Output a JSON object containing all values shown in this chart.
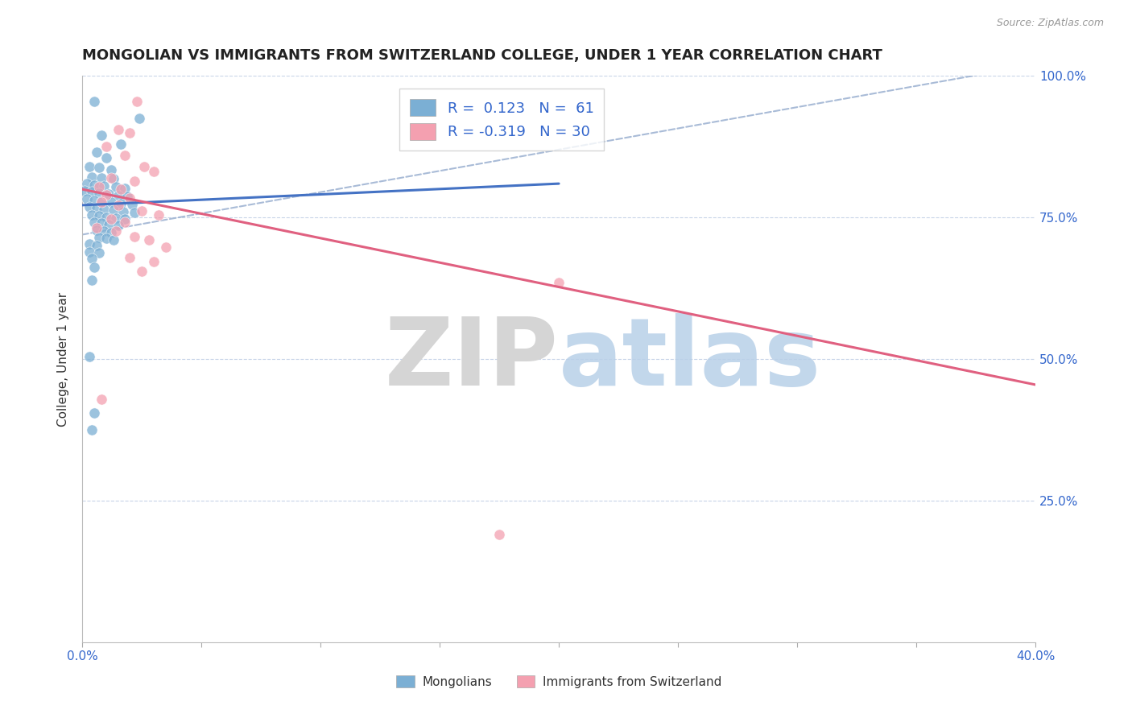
{
  "title": "MONGOLIAN VS IMMIGRANTS FROM SWITZERLAND COLLEGE, UNDER 1 YEAR CORRELATION CHART",
  "source": "Source: ZipAtlas.com",
  "ylabel": "College, Under 1 year",
  "xlim": [
    0.0,
    0.4
  ],
  "ylim": [
    0.0,
    1.0
  ],
  "xticks": [
    0.0,
    0.05,
    0.1,
    0.15,
    0.2,
    0.25,
    0.3,
    0.35,
    0.4
  ],
  "yticks": [
    0.0,
    0.25,
    0.5,
    0.75,
    1.0
  ],
  "blue_color": "#7bafd4",
  "pink_color": "#f4a0b0",
  "trend_blue_color": "#4472c4",
  "trend_pink_color": "#e06080",
  "trend_gray_color": "#9ab0d0",
  "scatter_blue": [
    [
      0.005,
      0.955
    ],
    [
      0.024,
      0.925
    ],
    [
      0.008,
      0.895
    ],
    [
      0.016,
      0.88
    ],
    [
      0.006,
      0.865
    ],
    [
      0.01,
      0.855
    ],
    [
      0.003,
      0.84
    ],
    [
      0.007,
      0.838
    ],
    [
      0.012,
      0.835
    ],
    [
      0.004,
      0.822
    ],
    [
      0.008,
      0.82
    ],
    [
      0.013,
      0.818
    ],
    [
      0.002,
      0.81
    ],
    [
      0.005,
      0.808
    ],
    [
      0.009,
      0.806
    ],
    [
      0.014,
      0.804
    ],
    [
      0.018,
      0.802
    ],
    [
      0.001,
      0.798
    ],
    [
      0.004,
      0.796
    ],
    [
      0.007,
      0.793
    ],
    [
      0.011,
      0.791
    ],
    [
      0.015,
      0.789
    ],
    [
      0.019,
      0.787
    ],
    [
      0.002,
      0.783
    ],
    [
      0.005,
      0.781
    ],
    [
      0.008,
      0.779
    ],
    [
      0.012,
      0.777
    ],
    [
      0.016,
      0.775
    ],
    [
      0.021,
      0.773
    ],
    [
      0.003,
      0.769
    ],
    [
      0.006,
      0.767
    ],
    [
      0.009,
      0.765
    ],
    [
      0.013,
      0.763
    ],
    [
      0.017,
      0.761
    ],
    [
      0.022,
      0.759
    ],
    [
      0.004,
      0.755
    ],
    [
      0.007,
      0.753
    ],
    [
      0.01,
      0.751
    ],
    [
      0.014,
      0.749
    ],
    [
      0.018,
      0.747
    ],
    [
      0.005,
      0.742
    ],
    [
      0.008,
      0.74
    ],
    [
      0.011,
      0.738
    ],
    [
      0.015,
      0.736
    ],
    [
      0.006,
      0.728
    ],
    [
      0.009,
      0.726
    ],
    [
      0.012,
      0.724
    ],
    [
      0.007,
      0.715
    ],
    [
      0.01,
      0.713
    ],
    [
      0.013,
      0.711
    ],
    [
      0.003,
      0.703
    ],
    [
      0.006,
      0.701
    ],
    [
      0.003,
      0.69
    ],
    [
      0.007,
      0.688
    ],
    [
      0.004,
      0.678
    ],
    [
      0.005,
      0.663
    ],
    [
      0.004,
      0.64
    ],
    [
      0.003,
      0.505
    ],
    [
      0.005,
      0.405
    ],
    [
      0.004,
      0.375
    ]
  ],
  "scatter_pink": [
    [
      0.023,
      0.955
    ],
    [
      0.015,
      0.905
    ],
    [
      0.02,
      0.9
    ],
    [
      0.01,
      0.875
    ],
    [
      0.018,
      0.86
    ],
    [
      0.026,
      0.84
    ],
    [
      0.03,
      0.832
    ],
    [
      0.012,
      0.82
    ],
    [
      0.022,
      0.815
    ],
    [
      0.007,
      0.805
    ],
    [
      0.016,
      0.8
    ],
    [
      0.01,
      0.79
    ],
    [
      0.02,
      0.785
    ],
    [
      0.008,
      0.778
    ],
    [
      0.015,
      0.772
    ],
    [
      0.025,
      0.762
    ],
    [
      0.032,
      0.755
    ],
    [
      0.012,
      0.748
    ],
    [
      0.018,
      0.742
    ],
    [
      0.006,
      0.732
    ],
    [
      0.014,
      0.726
    ],
    [
      0.022,
      0.716
    ],
    [
      0.028,
      0.71
    ],
    [
      0.035,
      0.698
    ],
    [
      0.02,
      0.68
    ],
    [
      0.03,
      0.672
    ],
    [
      0.025,
      0.655
    ],
    [
      0.2,
      0.635
    ],
    [
      0.008,
      0.43
    ],
    [
      0.175,
      0.19
    ]
  ],
  "blue_trend_x": [
    0.0,
    0.2
  ],
  "blue_trend_y": [
    0.772,
    0.81
  ],
  "pink_trend_x": [
    0.0,
    0.4
  ],
  "pink_trend_y": [
    0.8,
    0.455
  ],
  "gray_trend_x": [
    0.0,
    0.4
  ],
  "gray_trend_y": [
    0.72,
    1.02
  ]
}
